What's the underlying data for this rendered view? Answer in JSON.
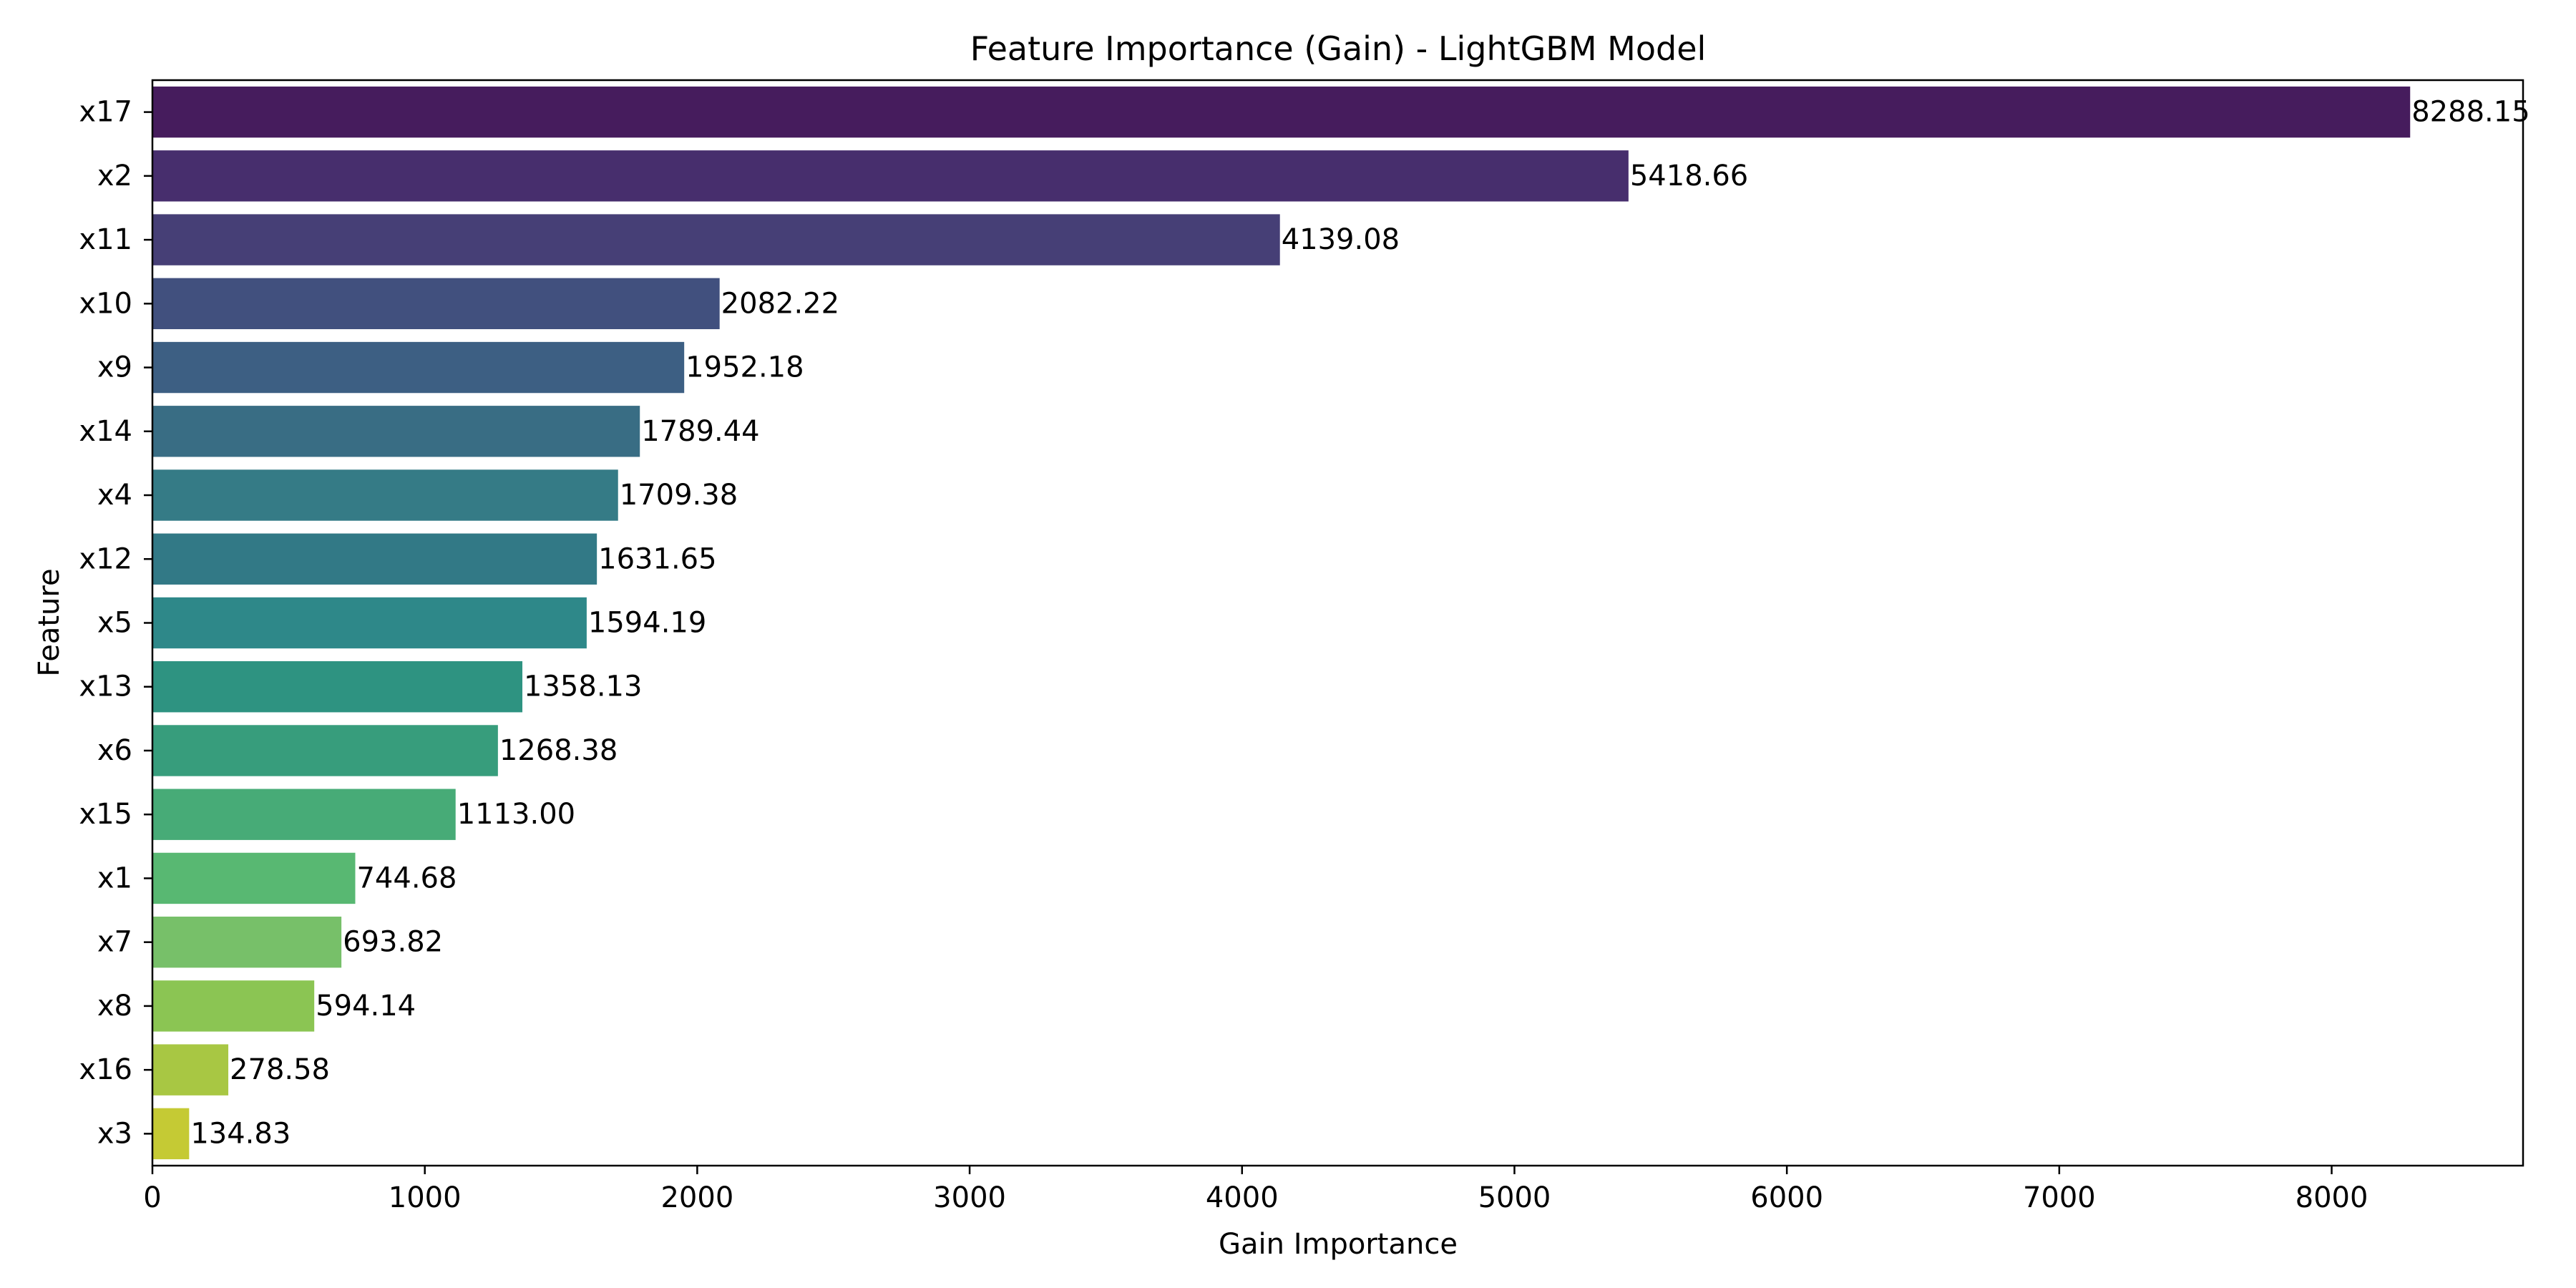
{
  "chart_data": {
    "type": "bar",
    "orientation": "horizontal",
    "title": "Feature Importance (Gain) - LightGBM Model",
    "xlabel": "Gain Importance",
    "ylabel": "Feature",
    "xlim": [
      0,
      8702.56
    ],
    "xticks": [
      0,
      1000,
      2000,
      3000,
      4000,
      5000,
      6000,
      7000,
      8000
    ],
    "grid": false,
    "categories": [
      "x17",
      "x2",
      "x11",
      "x10",
      "x9",
      "x14",
      "x4",
      "x12",
      "x5",
      "x13",
      "x6",
      "x15",
      "x1",
      "x7",
      "x8",
      "x16",
      "x3"
    ],
    "values": [
      8288.15,
      5418.66,
      4139.08,
      2082.22,
      1952.18,
      1789.44,
      1709.38,
      1631.65,
      1594.19,
      1358.13,
      1268.38,
      1113.0,
      744.68,
      693.82,
      594.14,
      278.58,
      134.83
    ],
    "value_labels": [
      "8288.15",
      "5418.66",
      "4139.08",
      "2082.22",
      "1952.18",
      "1789.44",
      "1709.38",
      "1631.65",
      "1594.19",
      "1358.13",
      "1268.38",
      "1113.00",
      "744.68",
      "693.82",
      "594.14",
      "278.58",
      "134.83"
    ],
    "colors": [
      "#461c5d",
      "#472e6d",
      "#463f76",
      "#41507e",
      "#3d5f83",
      "#396d84",
      "#357b86",
      "#327986",
      "#2e8889",
      "#2e9381",
      "#379d7c",
      "#47ab77",
      "#58b872",
      "#77c069",
      "#8bc553",
      "#a8c743",
      "#c5ca34"
    ]
  }
}
